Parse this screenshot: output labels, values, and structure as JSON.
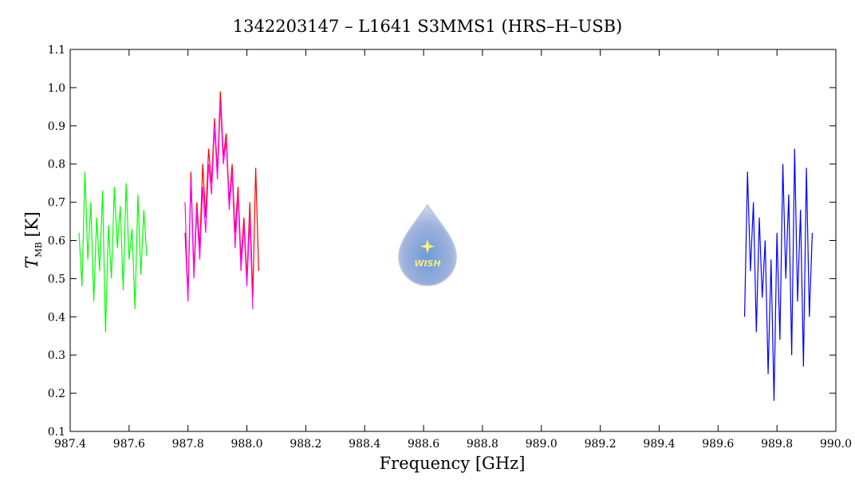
{
  "chart_data": {
    "type": "line",
    "title": "1342203147 – L1641 S3MMS1 (HRS–H–USB)",
    "x_label": "Frequency [GHz]",
    "y_label": {
      "symbol": "T",
      "subscript": "MB",
      "unit": "[K]"
    },
    "logo_text": "WISH",
    "xlim": [
      987.4,
      990.0
    ],
    "xticks": [
      987.4,
      987.6,
      987.8,
      {
        "value": 988,
        "label": "988.0"
      },
      988.2,
      988.4,
      988.6,
      988.8,
      {
        "value": 989,
        "label": "989.0"
      },
      989.2,
      989.4,
      989.6,
      989.8,
      {
        "value": 990,
        "label": "990.0"
      }
    ],
    "ylim": [
      0.1,
      1.1
    ],
    "yticks": [
      0.1,
      0.2,
      0.3,
      0.4,
      0.5,
      0.6,
      0.7,
      0.8,
      0.9,
      {
        "value": 1,
        "label": "1.0"
      },
      1.1
    ],
    "series": [
      {
        "color": "#00ff00",
        "x": [
          987.43,
          987.44,
          987.45,
          987.46,
          987.47,
          987.48,
          987.49,
          987.5,
          987.51,
          987.52,
          987.53,
          987.54,
          987.55,
          987.56,
          987.57,
          987.58,
          987.59,
          987.6,
          987.61,
          987.62,
          987.63,
          987.64,
          987.65,
          987.66
        ],
        "values": [
          0.62,
          0.48,
          0.78,
          0.55,
          0.7,
          0.44,
          0.66,
          0.52,
          0.73,
          0.36,
          0.64,
          0.5,
          0.74,
          0.58,
          0.69,
          0.47,
          0.75,
          0.55,
          0.63,
          0.42,
          0.72,
          0.51,
          0.68,
          0.56
        ]
      },
      {
        "color": "#ff0000",
        "x": [
          987.79,
          987.8,
          987.81,
          987.82,
          987.83,
          987.84,
          987.85,
          987.86,
          987.87,
          987.88,
          987.89,
          987.9,
          987.91,
          987.92,
          987.93,
          987.94,
          987.95,
          987.96,
          987.97,
          987.98,
          987.99,
          988.0,
          988.01,
          988.02,
          988.03,
          988.04
        ],
        "values": [
          0.62,
          0.45,
          0.78,
          0.52,
          0.7,
          0.58,
          0.8,
          0.66,
          0.84,
          0.75,
          0.92,
          0.78,
          0.99,
          0.82,
          0.88,
          0.7,
          0.8,
          0.62,
          0.74,
          0.55,
          0.66,
          0.5,
          0.7,
          0.45,
          0.79,
          0.52
        ]
      },
      {
        "color": "#ff00ff",
        "x": [
          987.79,
          987.8,
          987.81,
          987.82,
          987.83,
          987.84,
          987.85,
          987.86,
          987.87,
          987.88,
          987.89,
          987.9,
          987.91,
          987.92,
          987.93,
          987.94,
          987.95,
          987.96,
          987.97,
          987.98,
          987.99,
          988.0,
          988.01,
          988.02
        ],
        "values": [
          0.7,
          0.44,
          0.76,
          0.5,
          0.68,
          0.55,
          0.74,
          0.62,
          0.8,
          0.72,
          0.9,
          0.76,
          0.96,
          0.8,
          0.86,
          0.68,
          0.78,
          0.58,
          0.72,
          0.52,
          0.64,
          0.48,
          0.66,
          0.42
        ]
      },
      {
        "color": "#0000ff",
        "x": [
          989.69,
          989.7,
          989.71,
          989.72,
          989.73,
          989.74,
          989.75,
          989.76,
          989.77,
          989.78,
          989.79,
          989.8,
          989.81,
          989.82,
          989.83,
          989.84,
          989.85,
          989.86,
          989.87,
          989.88,
          989.89,
          989.9,
          989.91,
          989.92
        ],
        "values": [
          0.4,
          0.78,
          0.52,
          0.7,
          0.36,
          0.66,
          0.45,
          0.6,
          0.25,
          0.55,
          0.18,
          0.62,
          0.34,
          0.8,
          0.5,
          0.72,
          0.3,
          0.84,
          0.44,
          0.68,
          0.27,
          0.79,
          0.4,
          0.62
        ]
      }
    ]
  }
}
